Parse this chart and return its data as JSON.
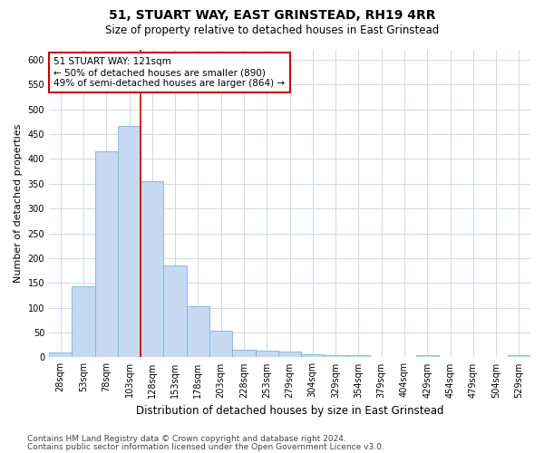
{
  "title": "51, STUART WAY, EAST GRINSTEAD, RH19 4RR",
  "subtitle": "Size of property relative to detached houses in East Grinstead",
  "xlabel": "Distribution of detached houses by size in East Grinstead",
  "ylabel": "Number of detached properties",
  "bin_labels": [
    "28sqm",
    "53sqm",
    "78sqm",
    "103sqm",
    "128sqm",
    "153sqm",
    "178sqm",
    "203sqm",
    "228sqm",
    "253sqm",
    "279sqm",
    "304sqm",
    "329sqm",
    "354sqm",
    "379sqm",
    "404sqm",
    "429sqm",
    "454sqm",
    "479sqm",
    "504sqm",
    "529sqm"
  ],
  "bar_values": [
    10,
    143,
    415,
    467,
    355,
    185,
    103,
    54,
    16,
    14,
    11,
    7,
    5,
    5,
    0,
    0,
    5,
    0,
    0,
    0,
    5
  ],
  "bar_color": "#c6d9f0",
  "bar_edgecolor": "#7eb3d8",
  "bar_width": 1.0,
  "vline_x": 3.5,
  "vline_color": "#cc0000",
  "annotation_line1": "51 STUART WAY: 121sqm",
  "annotation_line2": "← 50% of detached houses are smaller (890)",
  "annotation_line3": "49% of semi-detached houses are larger (864) →",
  "annotation_box_color": "#cc0000",
  "ylim": [
    0,
    620
  ],
  "yticks": [
    0,
    50,
    100,
    150,
    200,
    250,
    300,
    350,
    400,
    450,
    500,
    550,
    600
  ],
  "bg_color": "#ffffff",
  "plot_bg_color": "#ffffff",
  "grid_color": "#d0d8e8",
  "title_fontsize": 10,
  "subtitle_fontsize": 8.5,
  "xlabel_fontsize": 8.5,
  "ylabel_fontsize": 8,
  "tick_fontsize": 7,
  "annotation_fontsize": 7.5,
  "footer_fontsize": 6.5,
  "footer_line1": "Contains HM Land Registry data © Crown copyright and database right 2024.",
  "footer_line2": "Contains public sector information licensed under the Open Government Licence v3.0."
}
